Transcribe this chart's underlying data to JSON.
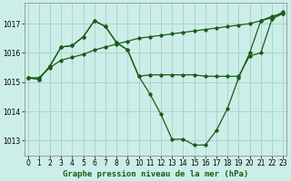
{
  "title": "Graphe pression niveau de la mer (hPa)",
  "bg_color": "#cceee8",
  "grid_color": "#aad4ce",
  "line_color": "#1a5c1a",
  "xlim": [
    -0.3,
    23.3
  ],
  "ylim": [
    1012.5,
    1017.7
  ],
  "yticks": [
    1013,
    1014,
    1015,
    1016,
    1017
  ],
  "xticks": [
    0,
    1,
    2,
    3,
    4,
    5,
    6,
    7,
    8,
    9,
    10,
    11,
    12,
    13,
    14,
    15,
    16,
    17,
    18,
    19,
    20,
    21,
    22,
    23
  ],
  "series_upper_x": [
    0,
    1,
    2,
    3,
    4,
    5,
    6,
    7,
    8,
    9,
    10,
    11,
    12,
    13,
    14,
    15,
    16,
    17,
    18,
    19,
    20,
    21,
    22,
    23
  ],
  "series_upper_y": [
    1015.15,
    1015.15,
    1015.5,
    1015.75,
    1015.85,
    1015.95,
    1016.1,
    1016.2,
    1016.3,
    1016.4,
    1016.5,
    1016.55,
    1016.6,
    1016.65,
    1016.7,
    1016.75,
    1016.8,
    1016.85,
    1016.9,
    1016.95,
    1017.0,
    1017.1,
    1017.25,
    1017.35
  ],
  "series_dip_x": [
    0,
    1,
    2,
    3,
    4,
    5,
    6,
    7,
    8,
    9,
    10,
    11,
    12,
    13,
    14,
    15,
    16,
    17,
    18,
    19,
    20,
    21,
    22,
    23
  ],
  "series_dip_y": [
    1015.15,
    1015.1,
    1015.55,
    1016.2,
    1016.25,
    1016.55,
    1017.1,
    1016.9,
    1016.35,
    1016.1,
    1015.2,
    1014.6,
    1013.9,
    1013.05,
    1013.05,
    1012.85,
    1012.85,
    1013.35,
    1014.1,
    1015.15,
    1016.0,
    1017.1,
    1017.2,
    1017.4
  ],
  "series_flat_x": [
    0,
    1,
    2,
    3,
    4,
    5,
    6,
    7,
    8,
    9,
    10,
    11,
    12,
    13,
    14,
    15,
    16,
    17,
    18,
    19,
    20,
    21,
    22,
    23
  ],
  "series_flat_y": [
    1015.15,
    1015.1,
    1015.55,
    1016.2,
    1016.25,
    1016.55,
    1017.1,
    1016.9,
    1016.35,
    1016.1,
    1015.2,
    1015.25,
    1015.25,
    1015.25,
    1015.25,
    1015.25,
    1015.2,
    1015.2,
    1015.2,
    1015.2,
    1015.9,
    1016.0,
    1017.15,
    1017.35
  ],
  "marker": "D",
  "markersize": 1.8,
  "linewidth": 0.9,
  "xlabel_fontsize": 6.5,
  "tick_fontsize": 5.5
}
